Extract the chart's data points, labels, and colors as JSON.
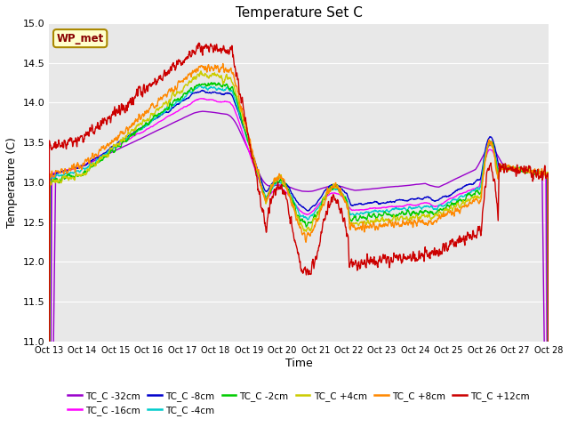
{
  "title": "Temperature Set C",
  "xlabel": "Time",
  "ylabel": "Temperature (C)",
  "ylim": [
    11.0,
    15.0
  ],
  "yticks": [
    11.0,
    11.5,
    12.0,
    12.5,
    13.0,
    13.5,
    14.0,
    14.5,
    15.0
  ],
  "xtick_labels": [
    "Oct 13",
    "Oct 14",
    "Oct 15",
    "Oct 16",
    "Oct 17",
    "Oct 18",
    "Oct 19",
    "Oct 20",
    "Oct 21",
    "Oct 22",
    "Oct 23",
    "Oct 24",
    "Oct 25",
    "Oct 26",
    "Oct 27",
    "Oct 28"
  ],
  "legend_label": "WP_met",
  "series": [
    {
      "label": "TC_C -32cm",
      "color": "#9900cc"
    },
    {
      "label": "TC_C -16cm",
      "color": "#ff00ff"
    },
    {
      "label": "TC_C -8cm",
      "color": "#0000cc"
    },
    {
      "label": "TC_C -4cm",
      "color": "#00cccc"
    },
    {
      "label": "TC_C -2cm",
      "color": "#00cc00"
    },
    {
      "label": "TC_C +4cm",
      "color": "#cccc00"
    },
    {
      "label": "TC_C +8cm",
      "color": "#ff8800"
    },
    {
      "label": "TC_C +12cm",
      "color": "#cc0000"
    }
  ],
  "bg_color": "#e8e8e8",
  "fig_bg": "#ffffff",
  "n_points": 1500
}
